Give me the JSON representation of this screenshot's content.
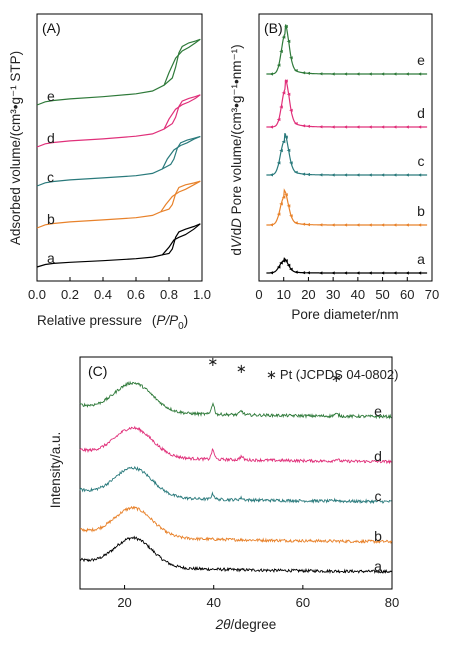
{
  "chart_data": [
    {
      "panel": "(A)",
      "type": "line",
      "xlabel": "Relative pressure",
      "xlabel_symbol_main": "P/P",
      "xlabel_symbol_sub": "0",
      "ylabel": "Adsorbed volume/(cm³•g⁻¹ STP)",
      "xlim": [
        0.0,
        1.0
      ],
      "xticks": [
        "0.0",
        "0.2",
        "0.4",
        "0.6",
        "0.8",
        "1.0"
      ],
      "series": [
        {
          "name": "a",
          "color": "#000000",
          "offset": 0,
          "adsorption": [
            [
              0.0,
              0.0
            ],
            [
              0.05,
              0.28
            ],
            [
              0.1,
              0.4
            ],
            [
              0.2,
              0.52
            ],
            [
              0.4,
              0.7
            ],
            [
              0.6,
              0.92
            ],
            [
              0.7,
              1.1
            ],
            [
              0.76,
              1.35
            ],
            [
              0.8,
              2.2
            ],
            [
              0.83,
              3.0
            ],
            [
              0.86,
              3.3
            ],
            [
              0.9,
              3.6
            ],
            [
              0.95,
              4.2
            ],
            [
              0.99,
              4.8
            ]
          ],
          "desorption": [
            [
              0.99,
              4.8
            ],
            [
              0.95,
              4.5
            ],
            [
              0.9,
              4.2
            ],
            [
              0.86,
              3.9
            ],
            [
              0.84,
              3.3
            ],
            [
              0.82,
              2.0
            ],
            [
              0.8,
              1.5
            ],
            [
              0.76,
              1.35
            ]
          ]
        },
        {
          "name": "b",
          "color": "#e8822b",
          "offset": 13,
          "adsorption": [
            [
              0.0,
              0.0
            ],
            [
              0.05,
              0.35
            ],
            [
              0.1,
              0.5
            ],
            [
              0.2,
              0.68
            ],
            [
              0.4,
              0.9
            ],
            [
              0.6,
              1.15
            ],
            [
              0.7,
              1.4
            ],
            [
              0.75,
              1.8
            ],
            [
              0.78,
              2.6
            ],
            [
              0.82,
              3.5
            ],
            [
              0.86,
              4.0
            ],
            [
              0.9,
              4.3
            ],
            [
              0.95,
              4.8
            ],
            [
              0.99,
              5.2
            ]
          ],
          "desorption": [
            [
              0.99,
              5.2
            ],
            [
              0.95,
              5.0
            ],
            [
              0.9,
              4.8
            ],
            [
              0.86,
              4.5
            ],
            [
              0.84,
              3.8
            ],
            [
              0.82,
              2.6
            ],
            [
              0.8,
              2.1
            ],
            [
              0.75,
              1.8
            ]
          ]
        },
        {
          "name": "c",
          "color": "#2a7a7c",
          "offset": 27,
          "adsorption": [
            [
              0.0,
              0.0
            ],
            [
              0.05,
              0.35
            ],
            [
              0.1,
              0.5
            ],
            [
              0.2,
              0.68
            ],
            [
              0.4,
              0.9
            ],
            [
              0.6,
              1.15
            ],
            [
              0.7,
              1.4
            ],
            [
              0.76,
              1.9
            ],
            [
              0.79,
              3.0
            ],
            [
              0.83,
              4.0
            ],
            [
              0.87,
              4.5
            ],
            [
              0.91,
              4.8
            ],
            [
              0.95,
              5.2
            ],
            [
              0.99,
              5.5
            ]
          ],
          "desorption": [
            [
              0.99,
              5.5
            ],
            [
              0.95,
              5.3
            ],
            [
              0.91,
              5.1
            ],
            [
              0.87,
              4.8
            ],
            [
              0.85,
              4.2
            ],
            [
              0.83,
              3.0
            ],
            [
              0.81,
              2.4
            ],
            [
              0.76,
              1.9
            ]
          ]
        },
        {
          "name": "d",
          "color": "#e0307a",
          "offset": 40,
          "adsorption": [
            [
              0.0,
              0.0
            ],
            [
              0.05,
              0.35
            ],
            [
              0.1,
              0.5
            ],
            [
              0.2,
              0.68
            ],
            [
              0.4,
              0.9
            ],
            [
              0.6,
              1.2
            ],
            [
              0.7,
              1.45
            ],
            [
              0.77,
              2.0
            ],
            [
              0.8,
              3.1
            ],
            [
              0.84,
              4.2
            ],
            [
              0.88,
              4.7
            ],
            [
              0.92,
              5.0
            ],
            [
              0.96,
              5.4
            ],
            [
              0.99,
              5.8
            ]
          ],
          "desorption": [
            [
              0.99,
              5.8
            ],
            [
              0.96,
              5.6
            ],
            [
              0.92,
              5.4
            ],
            [
              0.88,
              5.1
            ],
            [
              0.86,
              4.5
            ],
            [
              0.84,
              3.3
            ],
            [
              0.82,
              2.6
            ],
            [
              0.77,
              2.0
            ]
          ]
        },
        {
          "name": "e",
          "color": "#2f7a3a",
          "offset": 54,
          "adsorption": [
            [
              0.0,
              0.0
            ],
            [
              0.05,
              0.35
            ],
            [
              0.1,
              0.5
            ],
            [
              0.2,
              0.68
            ],
            [
              0.4,
              0.92
            ],
            [
              0.6,
              1.25
            ],
            [
              0.7,
              1.55
            ],
            [
              0.77,
              2.2
            ],
            [
              0.8,
              3.6
            ],
            [
              0.84,
              5.2
            ],
            [
              0.88,
              6.0
            ],
            [
              0.92,
              6.4
            ],
            [
              0.96,
              6.9
            ],
            [
              0.99,
              7.3
            ]
          ],
          "desorption": [
            [
              0.99,
              7.3
            ],
            [
              0.96,
              7.1
            ],
            [
              0.92,
              6.9
            ],
            [
              0.88,
              6.5
            ],
            [
              0.86,
              5.8
            ],
            [
              0.84,
              4.2
            ],
            [
              0.82,
              3.0
            ],
            [
              0.77,
              2.2
            ]
          ]
        }
      ]
    },
    {
      "panel": "(B)",
      "type": "line",
      "xlabel": "Pore diameter/nm",
      "ylabel_prefix": "d",
      "ylabel_italic": "V",
      "ylabel_mid": "/d",
      "ylabel_italic2": "D",
      "ylabel_rest": " Pore volume/(cm³•g⁻¹•nm⁻¹)",
      "xlim": [
        0,
        70
      ],
      "xticks": [
        "0",
        "10",
        "20",
        "30",
        "40",
        "50",
        "60",
        "70"
      ],
      "marker_x": [
        5,
        8,
        9,
        10,
        11,
        12,
        13,
        15,
        18,
        20,
        25,
        30,
        35,
        40,
        45,
        50,
        55,
        60,
        65
      ],
      "series": [
        {
          "name": "a",
          "color": "#000000",
          "offset": 0,
          "peak_center": 10.0,
          "peak_height": 12,
          "peak_width": 1.7
        },
        {
          "name": "b",
          "color": "#e8822b",
          "offset": 48,
          "peak_center": 10.2,
          "peak_height": 28,
          "peak_width": 1.6
        },
        {
          "name": "c",
          "color": "#2a7a7c",
          "offset": 98,
          "peak_center": 10.3,
          "peak_height": 34,
          "peak_width": 1.6
        },
        {
          "name": "d",
          "color": "#e0307a",
          "offset": 146,
          "peak_center": 10.7,
          "peak_height": 38,
          "peak_width": 1.5
        },
        {
          "name": "e",
          "color": "#2f7a3a",
          "offset": 199,
          "peak_center": 10.6,
          "peak_height": 40,
          "peak_width": 1.5
        }
      ]
    },
    {
      "panel": "(C)",
      "type": "line",
      "xlabel_symbol": "2θ",
      "xlabel": "/degree",
      "ylabel": "Intensity/a.u.",
      "xlim": [
        10,
        80
      ],
      "xticks": [
        "20",
        "40",
        "60",
        "80"
      ],
      "reference_symbol": "∗",
      "reference_label": "Pt (JCPDS 04-0802)",
      "pt_peaks_2theta": [
        39.8,
        46.2,
        67.5
      ],
      "series": [
        {
          "name": "a",
          "color": "#000000",
          "offset": 0,
          "pt_intensity": 0
        },
        {
          "name": "b",
          "color": "#e8822b",
          "offset": 30,
          "pt_intensity": 0
        },
        {
          "name": "c",
          "color": "#2a7a7c",
          "offset": 70,
          "pt_intensity": 4
        },
        {
          "name": "d",
          "color": "#e0307a",
          "offset": 110,
          "pt_intensity": 7
        },
        {
          "name": "e",
          "color": "#2f7a3a",
          "offset": 155,
          "pt_intensity": 8
        }
      ]
    }
  ]
}
